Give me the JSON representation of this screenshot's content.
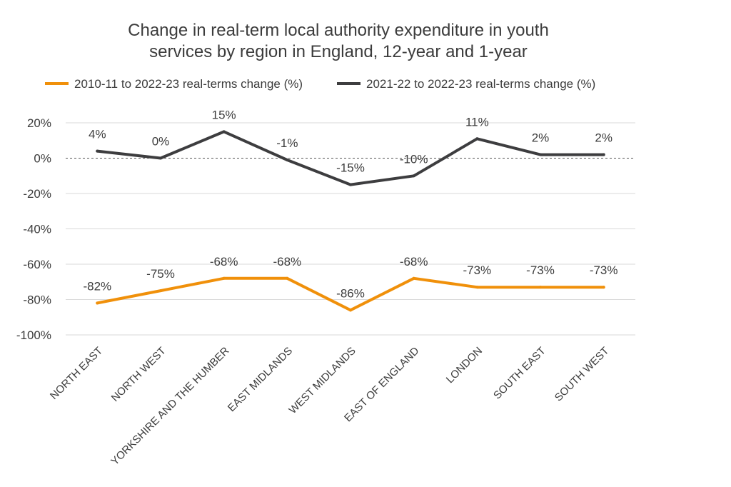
{
  "chart_data": {
    "type": "line",
    "title_line1": "Change in real-term local authority expenditure in youth",
    "title_line2": "services by region in England, 12-year and 1-year",
    "categories": [
      "NORTH EAST",
      "NORTH WEST",
      "YORKSHIRE AND THE HUMBER",
      "EAST MIDLANDS",
      "WEST MIDLANDS",
      "EAST OF ENGLAND",
      "LONDON",
      "SOUTH EAST",
      "SOUTH WEST"
    ],
    "series": [
      {
        "name": "2010-11 to 2022-23 real-terms change (%)",
        "color": "#f0900a",
        "values": [
          -82,
          -75,
          -68,
          -68,
          -86,
          -68,
          -73,
          -73,
          -73
        ],
        "labels": [
          "-82%",
          "-75%",
          "-68%",
          "-68%",
          "-86%",
          "-68%",
          "-73%",
          "-73%",
          "-73%"
        ]
      },
      {
        "name": "2021-22 to 2022-23 real-terms change (%)",
        "color": "#3d3d3f",
        "values": [
          4,
          0,
          15,
          -1,
          -15,
          -10,
          11,
          2,
          2
        ],
        "labels": [
          "4%",
          "0%",
          "15%",
          "-1%",
          "-15%",
          "-10%",
          "11%",
          "2%",
          "2%"
        ]
      }
    ],
    "ylim": [
      -100,
      20
    ],
    "yticks": [
      20,
      0,
      -20,
      -40,
      -60,
      -80,
      -100
    ],
    "ytick_labels": [
      "20%",
      "0%",
      "-20%",
      "-40%",
      "-60%",
      "-80%",
      "-100%"
    ],
    "grid": true,
    "zero_line": "dashed",
    "legend_position": "top"
  }
}
